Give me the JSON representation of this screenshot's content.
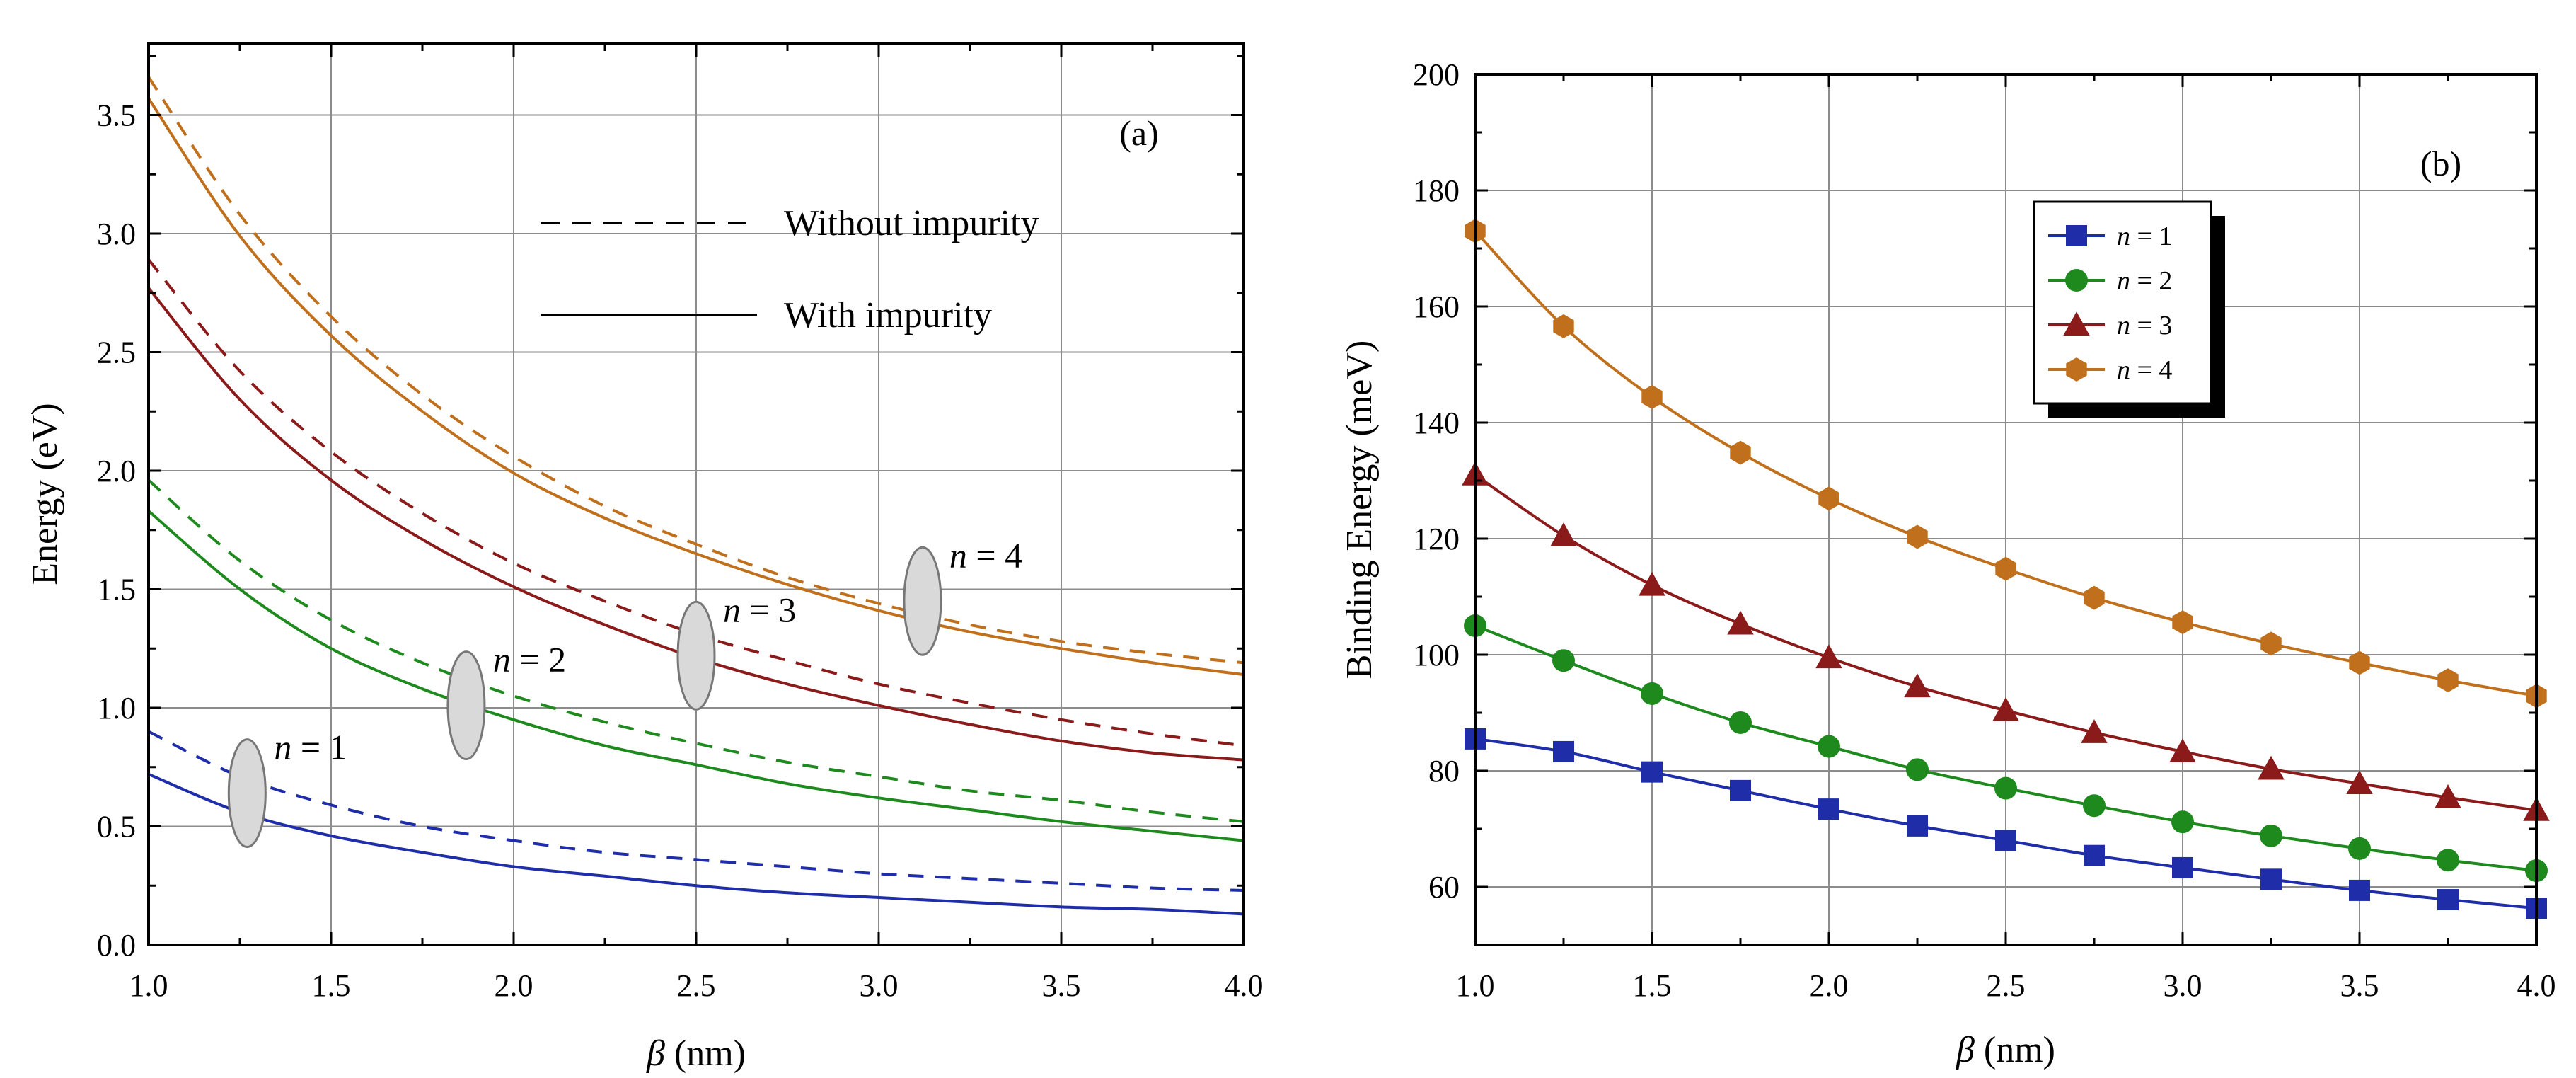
{
  "chart_data": [
    {
      "panel": "(a)",
      "type": "line",
      "xlabel_symbol": "β",
      "xlabel_unit": " (nm)",
      "ylabel": "Energy (eV)",
      "xlim": [
        1.0,
        4.0
      ],
      "ylim": [
        0.0,
        3.8
      ],
      "x_ticks": [
        "1.0",
        "1.5",
        "2.0",
        "2.5",
        "3.0",
        "3.5",
        "4.0"
      ],
      "y_ticks": [
        "0.0",
        "0.5",
        "1.0",
        "1.5",
        "2.0",
        "2.5",
        "3.0",
        "3.5"
      ],
      "grid": true,
      "legend": {
        "position": "top-right",
        "entries": [
          {
            "label": "Without impurity",
            "style": "dashed"
          },
          {
            "label": "With impurity",
            "style": "solid"
          }
        ]
      },
      "annotations": [
        {
          "var": "n",
          "eq": " = 1",
          "x": 1.27,
          "y": 0.64
        },
        {
          "var": "n",
          "eq": " = 2",
          "x": 1.87,
          "y": 1.01
        },
        {
          "var": "n",
          "eq": " = 3",
          "x": 2.5,
          "y": 1.22
        },
        {
          "var": "n",
          "eq": " = 4",
          "x": 3.12,
          "y": 1.45
        }
      ],
      "series": [
        {
          "name": "n = 1 without impurity",
          "state": "n = 1",
          "style": "dashed",
          "color": "#1f2ea8",
          "x": [
            1.0,
            1.25,
            1.5,
            1.75,
            2.0,
            2.25,
            2.5,
            2.75,
            3.0,
            3.25,
            3.5,
            3.75,
            4.0
          ],
          "values": [
            0.9,
            0.71,
            0.59,
            0.5,
            0.44,
            0.39,
            0.36,
            0.33,
            0.3,
            0.28,
            0.26,
            0.24,
            0.23
          ]
        },
        {
          "name": "n = 1 with impurity",
          "state": "n = 1",
          "style": "solid",
          "color": "#1f2ea8",
          "x": [
            1.0,
            1.25,
            1.5,
            1.75,
            2.0,
            2.25,
            2.5,
            2.75,
            3.0,
            3.25,
            3.5,
            3.75,
            4.0
          ],
          "values": [
            0.72,
            0.56,
            0.46,
            0.39,
            0.33,
            0.29,
            0.25,
            0.22,
            0.2,
            0.18,
            0.16,
            0.15,
            0.13
          ]
        },
        {
          "name": "n = 2 without impurity",
          "state": "n = 2",
          "style": "dashed",
          "color": "#1e8a1e",
          "x": [
            1.0,
            1.25,
            1.5,
            1.75,
            2.0,
            2.25,
            2.5,
            2.75,
            3.0,
            3.25,
            3.5,
            3.75,
            4.0
          ],
          "values": [
            1.96,
            1.62,
            1.37,
            1.19,
            1.05,
            0.94,
            0.85,
            0.77,
            0.71,
            0.65,
            0.61,
            0.56,
            0.52
          ]
        },
        {
          "name": "n = 2 with impurity",
          "state": "n = 2",
          "style": "solid",
          "color": "#1e8a1e",
          "x": [
            1.0,
            1.25,
            1.5,
            1.75,
            2.0,
            2.25,
            2.5,
            2.75,
            3.0,
            3.25,
            3.5,
            3.75,
            4.0
          ],
          "values": [
            1.83,
            1.5,
            1.25,
            1.08,
            0.95,
            0.84,
            0.76,
            0.68,
            0.62,
            0.57,
            0.52,
            0.48,
            0.44
          ]
        },
        {
          "name": "n = 3 without impurity",
          "state": "n = 3",
          "style": "dashed",
          "color": "#8b1a1a",
          "x": [
            1.0,
            1.25,
            1.5,
            1.75,
            2.0,
            2.25,
            2.5,
            2.75,
            3.0,
            3.25,
            3.5,
            3.75,
            4.0
          ],
          "values": [
            2.89,
            2.42,
            2.08,
            1.82,
            1.61,
            1.45,
            1.31,
            1.2,
            1.1,
            1.02,
            0.95,
            0.89,
            0.84
          ]
        },
        {
          "name": "n = 3 with impurity",
          "state": "n = 3",
          "style": "solid",
          "color": "#8b1a1a",
          "x": [
            1.0,
            1.25,
            1.5,
            1.75,
            2.0,
            2.25,
            2.5,
            2.75,
            3.0,
            3.25,
            3.5,
            3.75,
            4.0
          ],
          "values": [
            2.77,
            2.3,
            1.96,
            1.71,
            1.51,
            1.35,
            1.21,
            1.1,
            1.01,
            0.93,
            0.86,
            0.81,
            0.78
          ]
        },
        {
          "name": "n = 4 without impurity",
          "state": "n = 4",
          "style": "dashed",
          "color": "#c0701c",
          "x": [
            1.0,
            1.25,
            1.5,
            1.75,
            2.0,
            2.25,
            2.5,
            2.75,
            3.0,
            3.25,
            3.5,
            3.75,
            4.0
          ],
          "values": [
            3.66,
            3.08,
            2.65,
            2.32,
            2.06,
            1.85,
            1.69,
            1.55,
            1.44,
            1.35,
            1.28,
            1.23,
            1.19
          ]
        },
        {
          "name": "n = 4 with impurity",
          "state": "n = 4",
          "style": "solid",
          "color": "#c0701c",
          "x": [
            1.0,
            1.25,
            1.5,
            1.75,
            2.0,
            2.25,
            2.5,
            2.75,
            3.0,
            3.25,
            3.5,
            3.75,
            4.0
          ],
          "values": [
            3.57,
            2.99,
            2.57,
            2.25,
            1.99,
            1.8,
            1.65,
            1.52,
            1.41,
            1.32,
            1.25,
            1.19,
            1.14
          ]
        }
      ]
    },
    {
      "panel": "(b)",
      "type": "line",
      "markers": true,
      "xlabel_symbol": "β",
      "xlabel_unit": " (nm)",
      "ylabel": "Binding Energy (meV)",
      "xlim": [
        1.0,
        4.0
      ],
      "ylim": [
        50,
        200
      ],
      "x_ticks": [
        "1.0",
        "1.5",
        "2.0",
        "2.5",
        "3.0",
        "3.5",
        "4.0"
      ],
      "y_ticks": [
        "60",
        "80",
        "100",
        "120",
        "140",
        "160",
        "180",
        "200"
      ],
      "grid": true,
      "legend": {
        "position": "upper-middle",
        "entries": [
          {
            "var": "n",
            "eq": " = 1",
            "marker": "square",
            "color": "#1f2ea8"
          },
          {
            "var": "n",
            "eq": " = 2",
            "marker": "circle",
            "color": "#1e8a1e"
          },
          {
            "var": "n",
            "eq": " = 3",
            "marker": "triangle",
            "color": "#8b1a1a"
          },
          {
            "var": "n",
            "eq": " = 4",
            "marker": "hexagon",
            "color": "#c0701c"
          }
        ]
      },
      "x": [
        1.0,
        1.25,
        1.5,
        1.75,
        2.0,
        2.25,
        2.5,
        2.75,
        3.0,
        3.25,
        3.5,
        3.75,
        4.0
      ],
      "series": [
        {
          "name": "n = 1",
          "marker": "square",
          "color": "#1f2ea8",
          "values": [
            85.5,
            83.3,
            79.8,
            76.6,
            73.4,
            70.5,
            68.0,
            65.4,
            63.3,
            61.3,
            59.4,
            57.8,
            56.3
          ]
        },
        {
          "name": "n = 2",
          "marker": "circle",
          "color": "#1e8a1e",
          "values": [
            105.0,
            99.0,
            93.3,
            88.3,
            84.2,
            80.2,
            77.0,
            74.0,
            71.2,
            68.8,
            66.6,
            64.6,
            62.8
          ]
        },
        {
          "name": "n = 3",
          "marker": "triangle",
          "color": "#8b1a1a",
          "values": [
            131.0,
            120.5,
            112.0,
            105.3,
            99.5,
            94.5,
            90.4,
            86.6,
            83.3,
            80.3,
            77.8,
            75.4,
            73.2
          ]
        },
        {
          "name": "n = 4",
          "marker": "hexagon",
          "color": "#c0701c",
          "values": [
            173.0,
            156.6,
            144.4,
            134.8,
            126.9,
            120.3,
            114.8,
            109.8,
            105.6,
            101.9,
            98.6,
            95.6,
            92.9
          ]
        }
      ]
    }
  ]
}
